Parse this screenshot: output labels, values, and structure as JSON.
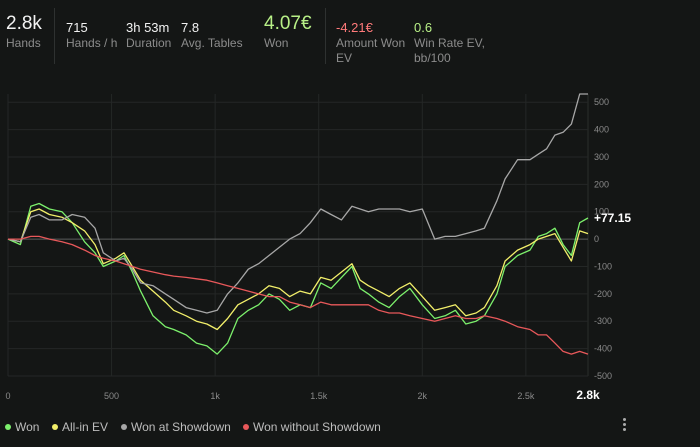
{
  "stats": {
    "hands": {
      "value": "2.8k",
      "label": "Hands"
    },
    "hands_per_hour": {
      "value": "715",
      "label": "Hands / h"
    },
    "duration": {
      "value": "3h 53m",
      "label": "Duration"
    },
    "avg_tables": {
      "value": "7.8",
      "label": "Avg. Tables"
    },
    "won": {
      "value": "4.07€",
      "label": "Won"
    },
    "amount_won_ev": {
      "value": "-4.21€",
      "label_1": "Amount Won",
      "label_2": "EV"
    },
    "win_rate_ev": {
      "value": "0.6",
      "label_1": "Win Rate EV,",
      "label_2": "bb/100"
    }
  },
  "colors": {
    "won": "#7cf06c",
    "allin_ev": "#f2ef6a",
    "showdown": "#a7a7a7",
    "no_showdown": "#e8585a",
    "positive": "#b8f087",
    "negative": "#ff7a7a"
  },
  "legend": [
    {
      "name": "Won",
      "key": "won"
    },
    {
      "name": "All-in EV",
      "key": "allin_ev"
    },
    {
      "name": "Won at Showdown",
      "key": "showdown"
    },
    {
      "name": "Won without Showdown",
      "key": "no_showdown"
    }
  ],
  "chart_data": {
    "type": "line",
    "xlim": [
      0,
      2800
    ],
    "ylim": [
      -500,
      530
    ],
    "x_ticks": [
      0,
      500,
      1000,
      1500,
      2000,
      2500
    ],
    "x_tick_labels": [
      "0",
      "500",
      "1k",
      "1.5k",
      "2k",
      "2.5k"
    ],
    "x_end_label": "2.8k",
    "y_ticks": [
      -500,
      -400,
      -300,
      -200,
      -100,
      0,
      100,
      200,
      300,
      400,
      500
    ],
    "y_tick_labels": [
      "-500",
      "-400",
      "-300",
      "-200",
      "-100",
      "0",
      "100",
      "200",
      "300",
      "400",
      "500"
    ],
    "end_value_label": "+77.15",
    "grid": true,
    "legend_position": "bottom-left",
    "series": [
      {
        "name": "Won",
        "key": "won",
        "x": [
          0,
          60,
          110,
          150,
          200,
          260,
          310,
          370,
          420,
          460,
          520,
          560,
          600,
          640,
          700,
          760,
          800,
          860,
          910,
          960,
          1010,
          1060,
          1110,
          1160,
          1210,
          1260,
          1310,
          1360,
          1410,
          1460,
          1510,
          1560,
          1610,
          1660,
          1700,
          1740,
          1790,
          1840,
          1890,
          1940,
          2000,
          2060,
          2110,
          2160,
          2210,
          2260,
          2300,
          2360,
          2400,
          2460,
          2520,
          2560,
          2600,
          2640,
          2680,
          2720,
          2760,
          2800
        ],
        "y": [
          0,
          -20,
          120,
          130,
          110,
          100,
          60,
          -10,
          -50,
          -100,
          -80,
          -60,
          -120,
          -190,
          -280,
          -320,
          -330,
          -350,
          -380,
          -390,
          -420,
          -380,
          -290,
          -260,
          -240,
          -200,
          -220,
          -260,
          -240,
          -250,
          -160,
          -180,
          -140,
          -100,
          -180,
          -200,
          -230,
          -250,
          -210,
          -180,
          -240,
          -290,
          -280,
          -260,
          -310,
          -300,
          -280,
          -200,
          -100,
          -60,
          -40,
          10,
          20,
          40,
          -20,
          -60,
          60,
          77
        ]
      },
      {
        "name": "All-in EV",
        "key": "allin_ev",
        "x": [
          0,
          60,
          110,
          150,
          200,
          260,
          310,
          370,
          420,
          460,
          520,
          560,
          600,
          640,
          700,
          760,
          800,
          860,
          910,
          960,
          1010,
          1060,
          1110,
          1160,
          1210,
          1260,
          1310,
          1360,
          1410,
          1460,
          1510,
          1560,
          1610,
          1660,
          1700,
          1740,
          1790,
          1840,
          1890,
          1940,
          2000,
          2060,
          2110,
          2160,
          2210,
          2260,
          2300,
          2360,
          2400,
          2460,
          2520,
          2560,
          2600,
          2640,
          2680,
          2720,
          2760,
          2800
        ],
        "y": [
          0,
          -10,
          100,
          110,
          90,
          80,
          60,
          30,
          -20,
          -90,
          -70,
          -50,
          -100,
          -150,
          -190,
          -230,
          -260,
          -280,
          -300,
          -310,
          -330,
          -290,
          -240,
          -220,
          -200,
          -170,
          -180,
          -210,
          -190,
          -200,
          -140,
          -150,
          -120,
          -90,
          -150,
          -170,
          -190,
          -210,
          -180,
          -160,
          -210,
          -260,
          -250,
          -240,
          -280,
          -270,
          -250,
          -170,
          -80,
          -40,
          -20,
          0,
          10,
          20,
          -30,
          -80,
          30,
          20
        ]
      },
      {
        "name": "Won at Showdown",
        "key": "showdown",
        "x": [
          0,
          60,
          110,
          150,
          200,
          260,
          310,
          370,
          420,
          460,
          520,
          560,
          600,
          640,
          700,
          760,
          800,
          860,
          910,
          960,
          1010,
          1060,
          1110,
          1160,
          1210,
          1260,
          1310,
          1360,
          1410,
          1460,
          1510,
          1560,
          1610,
          1660,
          1700,
          1740,
          1790,
          1840,
          1890,
          1940,
          2000,
          2060,
          2110,
          2160,
          2210,
          2260,
          2300,
          2360,
          2400,
          2460,
          2520,
          2560,
          2600,
          2640,
          2680,
          2720,
          2760,
          2800
        ],
        "y": [
          0,
          -10,
          80,
          90,
          70,
          70,
          90,
          80,
          40,
          -50,
          -80,
          -70,
          -110,
          -160,
          -170,
          -200,
          -220,
          -250,
          -260,
          -270,
          -260,
          -200,
          -160,
          -110,
          -90,
          -60,
          -30,
          0,
          20,
          60,
          110,
          90,
          70,
          120,
          110,
          100,
          110,
          110,
          110,
          100,
          110,
          0,
          10,
          10,
          20,
          30,
          40,
          140,
          220,
          290,
          290,
          310,
          330,
          380,
          390,
          420,
          530,
          530
        ]
      },
      {
        "name": "Won without Showdown",
        "key": "no_showdown",
        "x": [
          0,
          60,
          110,
          150,
          200,
          260,
          310,
          370,
          420,
          460,
          520,
          560,
          600,
          640,
          700,
          760,
          800,
          860,
          910,
          960,
          1010,
          1060,
          1110,
          1160,
          1210,
          1260,
          1310,
          1360,
          1410,
          1460,
          1510,
          1560,
          1610,
          1660,
          1700,
          1740,
          1790,
          1840,
          1890,
          1940,
          2000,
          2060,
          2110,
          2160,
          2210,
          2260,
          2300,
          2360,
          2400,
          2460,
          2520,
          2560,
          2600,
          2640,
          2680,
          2720,
          2760,
          2800
        ],
        "y": [
          0,
          0,
          10,
          10,
          0,
          -10,
          -20,
          -40,
          -60,
          -70,
          -80,
          -90,
          -100,
          -110,
          -120,
          -130,
          -135,
          -140,
          -145,
          -150,
          -160,
          -170,
          -180,
          -190,
          -200,
          -210,
          -210,
          -230,
          -240,
          -250,
          -230,
          -240,
          -240,
          -240,
          -240,
          -240,
          -260,
          -270,
          -270,
          -280,
          -290,
          -300,
          -290,
          -280,
          -290,
          -290,
          -280,
          -290,
          -300,
          -320,
          -330,
          -350,
          -350,
          -380,
          -410,
          -420,
          -410,
          -420
        ]
      }
    ]
  }
}
